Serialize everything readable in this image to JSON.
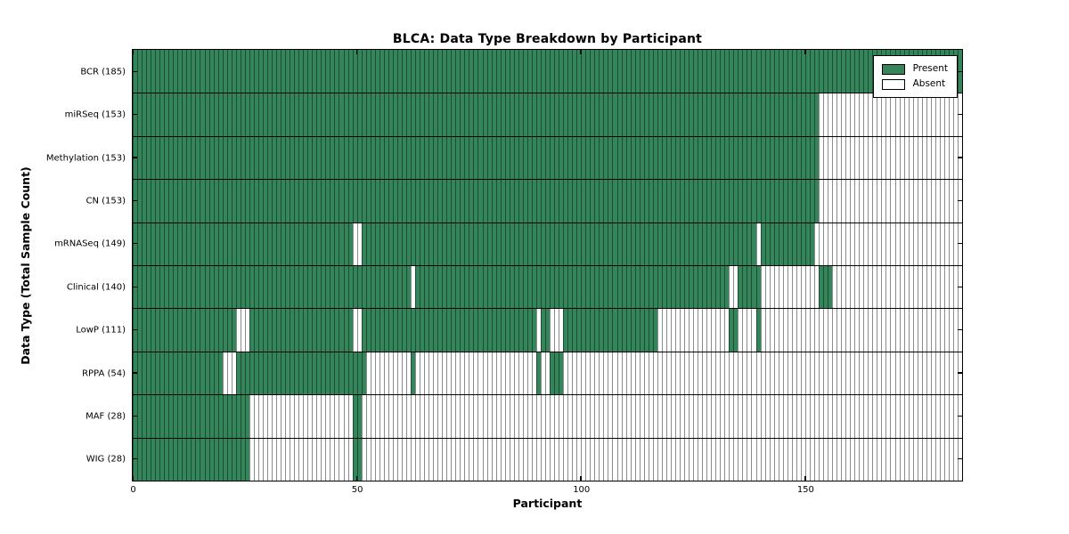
{
  "title": "BLCA: Data Type Breakdown by Participant",
  "chart_data": {
    "type": "heatmap",
    "title": "BLCA: Data Type Breakdown by Participant",
    "xlabel": "Participant",
    "ylabel": "Data Type (Total Sample Count)",
    "x_ticks": [
      0,
      50,
      100,
      150
    ],
    "xlim": [
      0,
      185
    ],
    "n_participants": 185,
    "grid": false,
    "legend_position": "upper right",
    "legend_items": [
      {
        "label": "Present",
        "color": "#35855A"
      },
      {
        "label": "Absent",
        "color": "#FFFFFF"
      }
    ],
    "colors": {
      "present_fill": "#35855A",
      "absent_fill": "#FFFFFF",
      "present_line": "#1C4C34",
      "absent_line": "#8C8C8C",
      "frame": "#000000"
    },
    "rows": [
      {
        "label": "BCR (185)",
        "data_type": "BCR",
        "count": 185,
        "present_ranges": [
          [
            0,
            184
          ]
        ]
      },
      {
        "label": "miRSeq (153)",
        "data_type": "miRSeq",
        "count": 153,
        "present_ranges": [
          [
            0,
            152
          ]
        ]
      },
      {
        "label": "Methylation (153)",
        "data_type": "Methylation",
        "count": 153,
        "present_ranges": [
          [
            0,
            152
          ]
        ]
      },
      {
        "label": "CN (153)",
        "data_type": "CN",
        "count": 153,
        "present_ranges": [
          [
            0,
            152
          ]
        ]
      },
      {
        "label": "mRNASeq (149)",
        "data_type": "mRNASeq",
        "count": 149,
        "present_ranges": [
          [
            0,
            48
          ],
          [
            51,
            138
          ],
          [
            140,
            151
          ]
        ]
      },
      {
        "label": "Clinical (140)",
        "data_type": "Clinical",
        "count": 140,
        "present_ranges": [
          [
            0,
            61
          ],
          [
            63,
            132
          ],
          [
            135,
            139
          ],
          [
            153,
            155
          ]
        ]
      },
      {
        "label": "LowP (111)",
        "data_type": "LowP",
        "count": 111,
        "present_ranges": [
          [
            0,
            22
          ],
          [
            26,
            48
          ],
          [
            51,
            89
          ],
          [
            91,
            92
          ],
          [
            96,
            116
          ],
          [
            133,
            134
          ],
          [
            139,
            139
          ]
        ]
      },
      {
        "label": "RPPA (54)",
        "data_type": "RPPA",
        "count": 54,
        "present_ranges": [
          [
            0,
            19
          ],
          [
            23,
            51
          ],
          [
            62,
            62
          ],
          [
            90,
            90
          ],
          [
            93,
            95
          ]
        ]
      },
      {
        "label": "MAF (28)",
        "data_type": "MAF",
        "count": 28,
        "present_ranges": [
          [
            0,
            25
          ],
          [
            49,
            50
          ]
        ]
      },
      {
        "label": "WIG (28)",
        "data_type": "WIG",
        "count": 28,
        "present_ranges": [
          [
            0,
            25
          ],
          [
            49,
            50
          ]
        ]
      }
    ]
  }
}
